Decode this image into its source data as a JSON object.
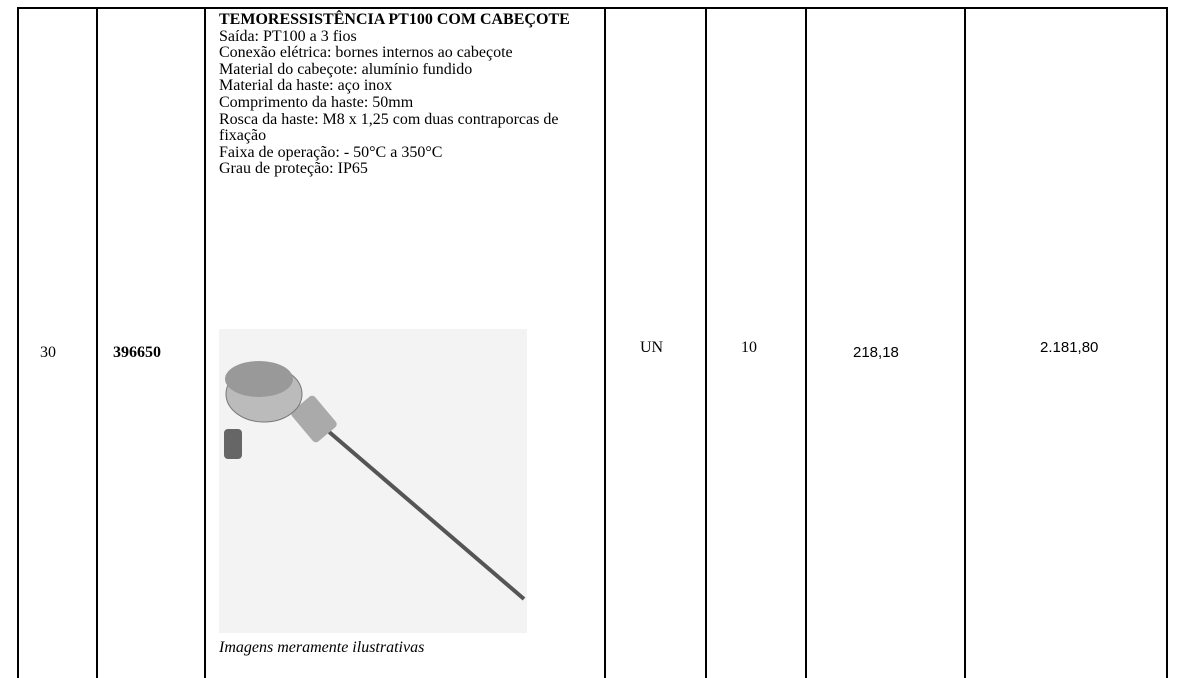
{
  "table": {
    "rows": [
      {
        "item": "30",
        "code": "396650",
        "description": {
          "title": "TEMORESSISTÊNCIA PT100 COM CABEÇOTE",
          "lines": [
            "Saída: PT100 a 3 fios",
            "Conexão elétrica: bornes internos ao cabeçote",
            "Material do cabeçote: alumínio fundido",
            "Material da haste: aço inox",
            "Comprimento da haste: 50mm",
            "Rosca da haste: M8 x 1,25 com duas contraporcas de fixação",
            "Faixa de operação: - 50°C a 350°C",
            "Grau de proteção: IP65"
          ],
          "image_caption": "Imagens meramente ilustrativas"
        },
        "unit": "UN",
        "quantity": "10",
        "unit_price": "218,18",
        "total": "2.181,80"
      }
    ]
  }
}
